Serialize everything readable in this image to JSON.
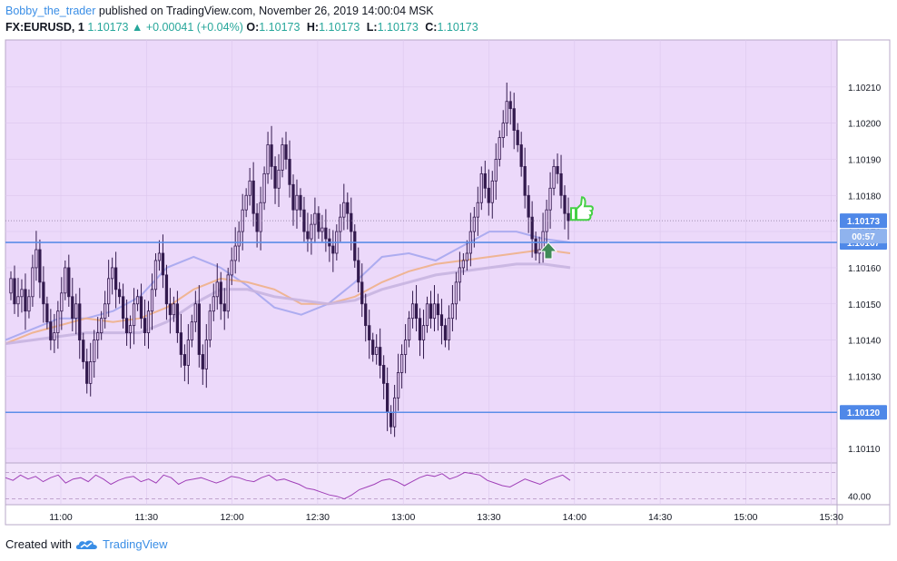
{
  "header": {
    "author": "Bobby_the_trader",
    "published_text": " published on TradingView.com, November 26, 2019 14:00:04 MSK",
    "symbol": "FX:EURUSD, 1",
    "last_price": "1.10173",
    "change": "▲ +0.00041 (+0.04%)",
    "o_label": "O:",
    "o_value": "1.10173",
    "h_label": "H:",
    "h_value": "1.10173",
    "l_label": "L:",
    "l_value": "1.10173",
    "c_label": "C:",
    "c_value": "1.10173"
  },
  "footer": {
    "created_with": "Created with",
    "brand": "TradingView"
  },
  "colors": {
    "chart_bg": "#ecd9fa",
    "pane_bg": "#f1e3fb",
    "candle_up": "#e8cdf6",
    "candle_down": "#331a4e",
    "level_line": "#5c8ee8",
    "ma_fast": "#a6a6ee",
    "ma_mid": "#f0b088",
    "ma_slow": "#c8b4e0",
    "osc": "#a040b8",
    "label_bg": "#4f88e8",
    "thumbs": "#45d045",
    "arrow": "#3f8a57"
  },
  "chart_data": {
    "type": "candlestick",
    "symbol": "FX:EURUSD",
    "timeframe": "1",
    "price_axis": {
      "ticks": [
        1.1021,
        1.102,
        1.1019,
        1.1018,
        1.1017,
        1.1016,
        1.1015,
        1.1014,
        1.1013,
        1.1012,
        1.1011
      ],
      "tick_labels": [
        "1.10210",
        "1.10200",
        "1.10190",
        "1.10180",
        "1.10170",
        "1.10160",
        "1.10150",
        "1.10140",
        "1.10130",
        "1.10120",
        "1.10110"
      ],
      "ylim": [
        1.10106,
        1.10223
      ]
    },
    "time_axis": {
      "labels": [
        "11:00",
        "11:30",
        "12:00",
        "12:30",
        "13:00",
        "13:30",
        "14:00",
        "14:30",
        "15:00",
        "15:30"
      ]
    },
    "series_close": [
      1.10157,
      1.1015,
      1.10152,
      1.10154,
      1.10148,
      1.10152,
      1.1016,
      1.10165,
      1.10156,
      1.1015,
      1.10145,
      1.1014,
      1.10142,
      1.10148,
      1.10153,
      1.1016,
      1.10152,
      1.10146,
      1.1015,
      1.1014,
      1.10134,
      1.10128,
      1.10134,
      1.1014,
      1.10142,
      1.10146,
      1.1015,
      1.10157,
      1.1016,
      1.10154,
      1.10152,
      1.10146,
      1.10142,
      1.10144,
      1.1015,
      1.10152,
      1.10146,
      1.10142,
      1.10148,
      1.10154,
      1.10162,
      1.10164,
      1.10158,
      1.1015,
      1.10147,
      1.1015,
      1.10142,
      1.10136,
      1.10133,
      1.1014,
      1.10145,
      1.1015,
      1.10136,
      1.10132,
      1.1014,
      1.10148,
      1.10152,
      1.10156,
      1.1015,
      1.10148,
      1.10158,
      1.10162,
      1.10166,
      1.1017,
      1.10176,
      1.1018,
      1.10184,
      1.10175,
      1.1017,
      1.10178,
      1.10186,
      1.10194,
      1.10188,
      1.10182,
      1.10187,
      1.10194,
      1.1019,
      1.10183,
      1.10176,
      1.1018,
      1.10176,
      1.1017,
      1.10168,
      1.10172,
      1.10175,
      1.1017,
      1.10171,
      1.10168,
      1.10166,
      1.10164,
      1.1017,
      1.10174,
      1.10178,
      1.10175,
      1.1017,
      1.10162,
      1.10156,
      1.1015,
      1.10144,
      1.1014,
      1.10136,
      1.10138,
      1.10133,
      1.10128,
      1.1012,
      1.10116,
      1.10124,
      1.10131,
      1.10136,
      1.1014,
      1.10146,
      1.1015,
      1.10146,
      1.1014,
      1.10144,
      1.1015,
      1.10146,
      1.1015,
      1.10147,
      1.10144,
      1.1014,
      1.10146,
      1.1015,
      1.10156,
      1.1016,
      1.10162,
      1.10164,
      1.1017,
      1.10174,
      1.10178,
      1.10186,
      1.10182,
      1.10178,
      1.10184,
      1.1019,
      1.10196,
      1.102,
      1.10206,
      1.10204,
      1.10198,
      1.10194,
      1.10188,
      1.1018,
      1.10174,
      1.10168,
      1.10164,
      1.10165,
      1.1017,
      1.10176,
      1.10182,
      1.10188,
      1.10186,
      1.1018,
      1.10175,
      1.10173
    ],
    "levels": [
      {
        "price": 1.10167,
        "label": "1.10167"
      },
      {
        "price": 1.1012,
        "label": "1.10120"
      }
    ],
    "last_price": {
      "value": 1.10173,
      "label": "1.10173",
      "countdown": "00:57"
    },
    "moving_averages": [
      {
        "color": "#a6a6ee",
        "y": [
          1.1014,
          1.10143,
          1.10146,
          1.10146,
          1.10148,
          1.10152,
          1.1016,
          1.10163,
          1.1016,
          1.10155,
          1.10149,
          1.10147,
          1.1015,
          1.10156,
          1.10163,
          1.10164,
          1.10162,
          1.10166,
          1.1017,
          1.1017,
          1.10168,
          1.10167
        ]
      },
      {
        "color": "#f0b088",
        "y": [
          1.10139,
          1.10142,
          1.10144,
          1.10146,
          1.10145,
          1.10146,
          1.10149,
          1.10154,
          1.10157,
          1.10156,
          1.10154,
          1.1015,
          1.1015,
          1.10152,
          1.10156,
          1.10159,
          1.10161,
          1.10162,
          1.10163,
          1.10164,
          1.10165,
          1.10164
        ]
      },
      {
        "color": "#c8b4e0",
        "y": [
          1.10139,
          1.1014,
          1.10141,
          1.10142,
          1.10142,
          1.10142,
          1.10145,
          1.1015,
          1.10154,
          1.10154,
          1.10152,
          1.10151,
          1.1015,
          1.10151,
          1.10154,
          1.10156,
          1.10158,
          1.10159,
          1.1016,
          1.10161,
          1.10161,
          1.1016
        ]
      }
    ],
    "oscillator": {
      "tick_label": "40.00",
      "values": [
        62,
        58,
        66,
        60,
        64,
        56,
        62,
        66,
        54,
        60,
        62,
        56,
        66,
        60,
        52,
        58,
        62,
        64,
        56,
        60,
        54,
        66,
        62,
        52,
        58,
        60,
        62,
        58,
        54,
        58,
        64,
        62,
        58,
        56,
        62,
        66,
        58,
        60,
        56,
        52,
        46,
        44,
        40,
        36,
        34,
        30,
        36,
        44,
        48,
        52,
        58,
        60,
        56,
        50,
        56,
        62,
        66,
        64,
        68,
        60,
        64,
        70,
        68,
        66,
        58,
        54,
        50,
        48,
        54,
        60,
        56,
        52,
        58,
        62,
        66,
        58
      ]
    },
    "markers": [
      {
        "kind": "up-arrow",
        "price": 1.10164
      },
      {
        "kind": "thumbs-up",
        "price": 1.10176
      }
    ]
  }
}
